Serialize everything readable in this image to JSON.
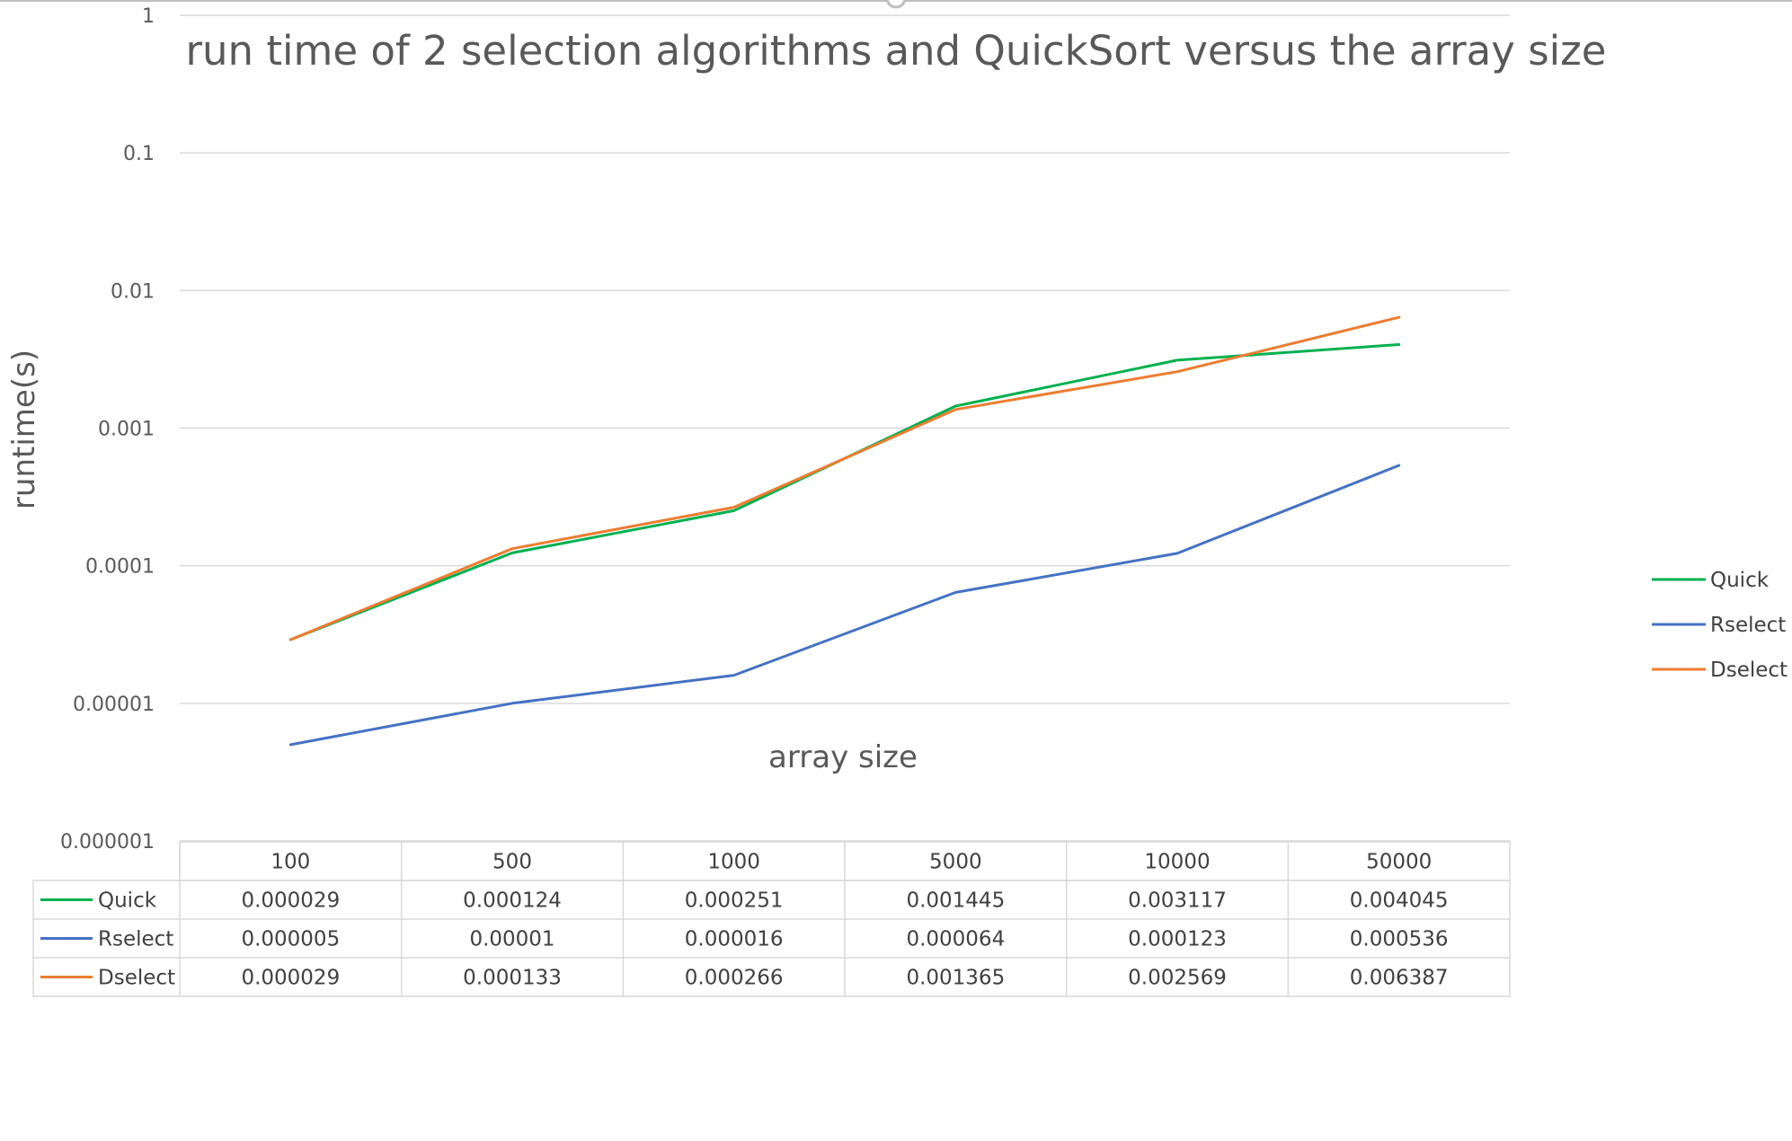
{
  "chart_data": {
    "type": "line",
    "title": "run time of 2 selection algorithms and QuickSort versus the array size",
    "xlabel": "array size",
    "ylabel": "runtime(s)",
    "y_scale": "log",
    "ylim": [
      1e-06,
      1
    ],
    "y_ticks": [
      "1",
      "0.1",
      "0.01",
      "0.001",
      "0.0001",
      "0.00001",
      "0.000001"
    ],
    "categories": [
      "100",
      "500",
      "1000",
      "5000",
      "10000",
      "50000"
    ],
    "legend_position": "right",
    "grid": true,
    "data_table": true,
    "series": [
      {
        "name": "Quick",
        "color": "#00b050",
        "values": [
          2.9e-05,
          0.000124,
          0.000251,
          0.001445,
          0.003117,
          0.004045
        ],
        "labels": [
          "0.000029",
          "0.000124",
          "0.000251",
          "0.001445",
          "0.003117",
          "0.004045"
        ]
      },
      {
        "name": "Rselect",
        "color": "#4472c4",
        "values": [
          5e-06,
          1e-05,
          1.6e-05,
          6.4e-05,
          0.000123,
          0.000536
        ],
        "labels": [
          "0.000005",
          "0.00001",
          "0.000016",
          "0.000064",
          "0.000123",
          "0.000536"
        ]
      },
      {
        "name": "Dselect",
        "color": "#ed7d31",
        "values": [
          2.9e-05,
          0.000133,
          0.000266,
          0.001365,
          0.002569,
          0.006387
        ],
        "labels": [
          "0.000029",
          "0.000133",
          "0.000266",
          "0.001365",
          "0.002569",
          "0.006387"
        ]
      }
    ]
  }
}
